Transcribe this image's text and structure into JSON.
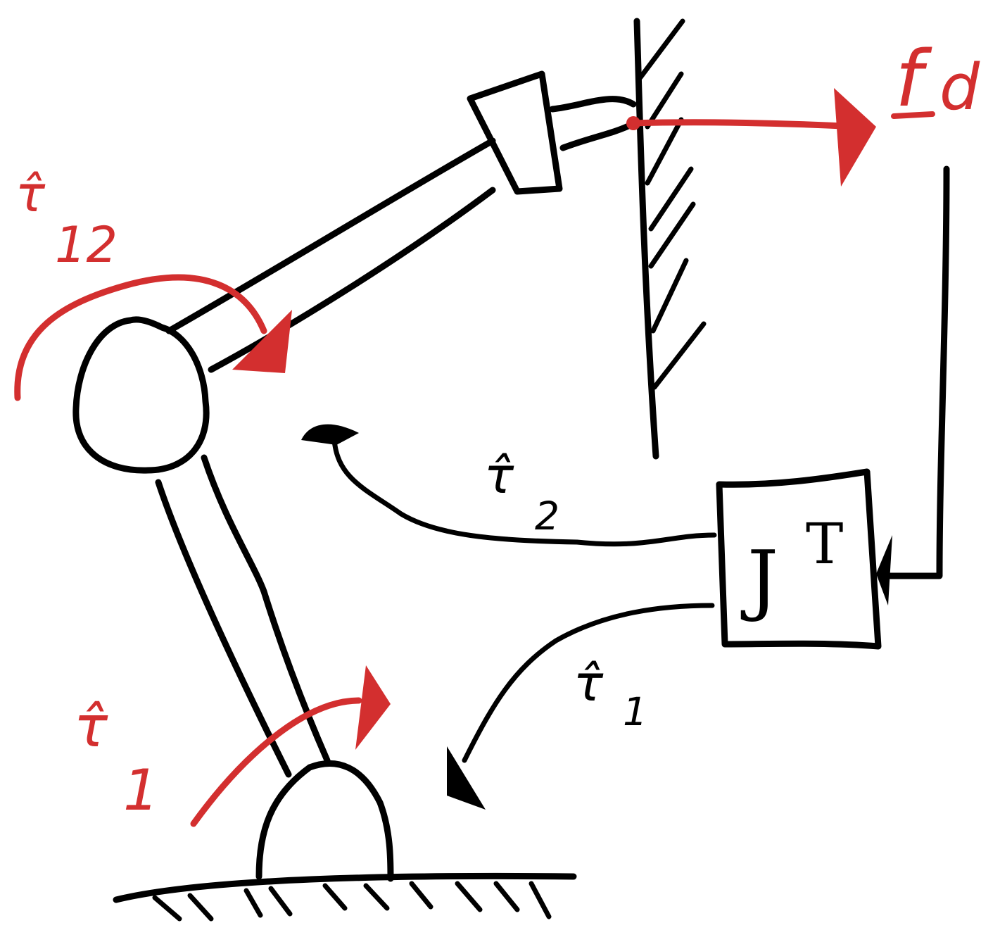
{
  "labels": {
    "force_desired": "f",
    "force_desired_sub": "d",
    "tau12_red": "τ̂",
    "tau12_red_sub": "12",
    "tau1_red": "τ̂",
    "tau1_red_sub": "1",
    "tau2_black": "τ̂",
    "tau2_black_sub": "2",
    "tau1_black": "τ̂",
    "tau1_black_sub": "1",
    "jacobian_transpose": "J",
    "jacobian_transpose_sup": "T"
  },
  "colors": {
    "ink": "#000000",
    "accent": "#d32f2f",
    "background": "#ffffff"
  }
}
